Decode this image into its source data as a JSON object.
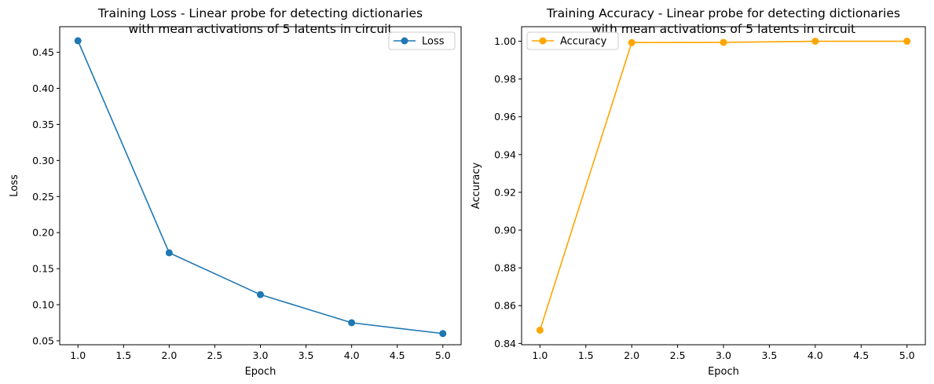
{
  "chart_data": [
    {
      "type": "line",
      "title": [
        "Training Loss - Linear probe for detecting dictionaries",
        "with mean activations of 5 latents in circuit"
      ],
      "xlabel": "Epoch",
      "ylabel": "Loss",
      "x": [
        1,
        2,
        3,
        4,
        5
      ],
      "xlim": [
        0.8,
        5.2
      ],
      "ylim": [
        0.0445,
        0.4855
      ],
      "xticks": [
        1.0,
        1.5,
        2.0,
        2.5,
        3.0,
        3.5,
        4.0,
        4.5,
        5.0
      ],
      "yticks": [
        0.05,
        0.1,
        0.15,
        0.2,
        0.25,
        0.3,
        0.35,
        0.4,
        0.45
      ],
      "xtick_labels": [
        "1.0",
        "1.5",
        "2.0",
        "2.5",
        "3.0",
        "3.5",
        "4.0",
        "4.5",
        "5.0"
      ],
      "ytick_labels": [
        "0.05",
        "0.10",
        "0.15",
        "0.20",
        "0.25",
        "0.30",
        "0.35",
        "0.40",
        "0.45"
      ],
      "legend_position": "top-right",
      "grid": false,
      "series": [
        {
          "name": "Loss",
          "color": "#1f77b4",
          "marker": "circle",
          "values": [
            0.466,
            0.172,
            0.114,
            0.075,
            0.06
          ]
        }
      ]
    },
    {
      "type": "line",
      "title": [
        "Training Accuracy - Linear probe for detecting dictionaries",
        "with mean activations of 5 latents in circuit"
      ],
      "xlabel": "Epoch",
      "ylabel": "Accuracy",
      "x": [
        1,
        2,
        3,
        4,
        5
      ],
      "xlim": [
        0.8,
        5.2
      ],
      "ylim": [
        0.8393,
        1.0077
      ],
      "xticks": [
        1.0,
        1.5,
        2.0,
        2.5,
        3.0,
        3.5,
        4.0,
        4.5,
        5.0
      ],
      "yticks": [
        0.84,
        0.86,
        0.88,
        0.9,
        0.92,
        0.94,
        0.96,
        0.98,
        1.0
      ],
      "xtick_labels": [
        "1.0",
        "1.5",
        "2.0",
        "2.5",
        "3.0",
        "3.5",
        "4.0",
        "4.5",
        "5.0"
      ],
      "ytick_labels": [
        "0.84",
        "0.86",
        "0.88",
        "0.90",
        "0.92",
        "0.94",
        "0.96",
        "0.98",
        "1.00"
      ],
      "legend_position": "top-left",
      "grid": false,
      "series": [
        {
          "name": "Accuracy",
          "color": "#ffa500",
          "marker": "circle",
          "values": [
            0.847,
            0.9993,
            0.9994,
            1.0,
            1.0
          ]
        }
      ]
    }
  ]
}
